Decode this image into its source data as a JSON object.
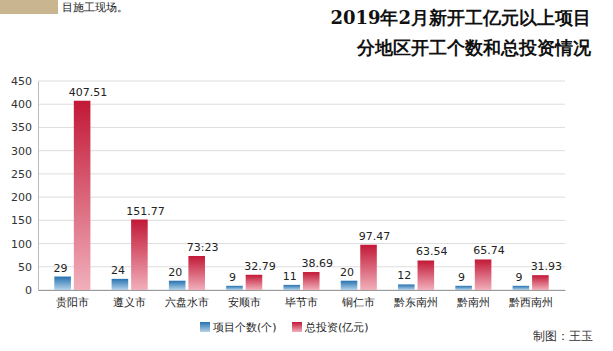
{
  "chart_data": {
    "type": "bar",
    "title": "2019年2月新开工亿元以上项目",
    "subtitle": "分地区开工个数和总投资情况",
    "annotations": [
      "目施工现场。",
      "制图：王玉"
    ],
    "categories": [
      "贵阳市",
      "遵义市",
      "六盘水市",
      "安顺市",
      "毕节市",
      "铜仁市",
      "黔东南州",
      "黔南州",
      "黔西南州"
    ],
    "series": [
      {
        "name": "项目个数(个)",
        "color": "#2a7fc4",
        "values": [
          29,
          24,
          20,
          9,
          11,
          20,
          12,
          9,
          9
        ]
      },
      {
        "name": "总投资(亿元)",
        "color": "#d81b3c",
        "values": [
          407.51,
          151.77,
          73.23,
          32.79,
          38.69,
          97.47,
          63.54,
          65.74,
          31.93
        ],
        "value_labels": [
          "407.51",
          "151.77",
          "73:23",
          "32.79",
          "38.69",
          "97.47",
          "63.54",
          "65.74",
          "31.93"
        ]
      }
    ],
    "ylim": [
      0,
      450
    ],
    "yticks": [
      0,
      50,
      100,
      150,
      200,
      250,
      300,
      350,
      400,
      450
    ],
    "grid": true,
    "legend": "bottom",
    "data_labels": true
  }
}
